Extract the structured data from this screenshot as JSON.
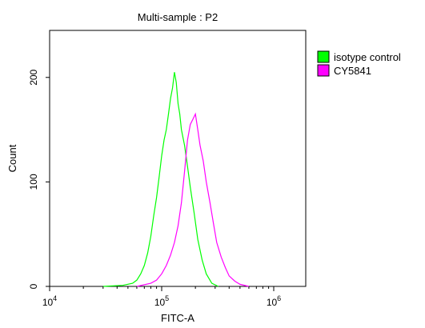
{
  "chart_data": {
    "type": "histogram",
    "title": "Multi-sample : P2",
    "xlabel": "FITC-A",
    "ylabel": "Count",
    "x_scale": "log",
    "xlim": [
      10000,
      2000000
    ],
    "ylim": [
      0,
      245
    ],
    "x_ticks": [
      {
        "value": 10000,
        "base": "10",
        "exp": "4"
      },
      {
        "value": 100000,
        "base": "10",
        "exp": "5"
      },
      {
        "value": 1000000,
        "base": "10",
        "exp": "6"
      }
    ],
    "y_ticks": [
      {
        "value": 0,
        "label": "0"
      },
      {
        "value": 100,
        "label": "100"
      },
      {
        "value": 200,
        "label": "200"
      }
    ],
    "legend_position": "right",
    "series": [
      {
        "name": "isotype control",
        "color": "#00ff00",
        "x": [
          30000,
          45000,
          55000,
          60000,
          65000,
          70000,
          75000,
          80000,
          85000,
          90000,
          95000,
          100000,
          105000,
          110000,
          115000,
          120000,
          125000,
          130000,
          135000,
          140000,
          145000,
          150000,
          160000,
          170000,
          180000,
          195000,
          210000,
          230000,
          250000,
          280000,
          320000
        ],
        "y": [
          0,
          1,
          3,
          6,
          12,
          20,
          32,
          48,
          68,
          85,
          105,
          125,
          140,
          150,
          165,
          180,
          190,
          205,
          195,
          175,
          165,
          150,
          135,
          115,
          95,
          70,
          45,
          25,
          12,
          3,
          0
        ]
      },
      {
        "name": "CY5841",
        "color": "#ff00ff",
        "x": [
          60000,
          80000,
          90000,
          100000,
          110000,
          120000,
          130000,
          140000,
          150000,
          160000,
          170000,
          180000,
          190000,
          200000,
          210000,
          220000,
          235000,
          250000,
          270000,
          290000,
          310000,
          340000,
          370000,
          400000,
          450000,
          500000,
          600000
        ],
        "y": [
          0,
          3,
          6,
          12,
          20,
          30,
          42,
          58,
          80,
          110,
          140,
          155,
          160,
          165,
          150,
          135,
          120,
          100,
          80,
          60,
          42,
          28,
          18,
          10,
          5,
          2,
          0
        ]
      }
    ]
  }
}
